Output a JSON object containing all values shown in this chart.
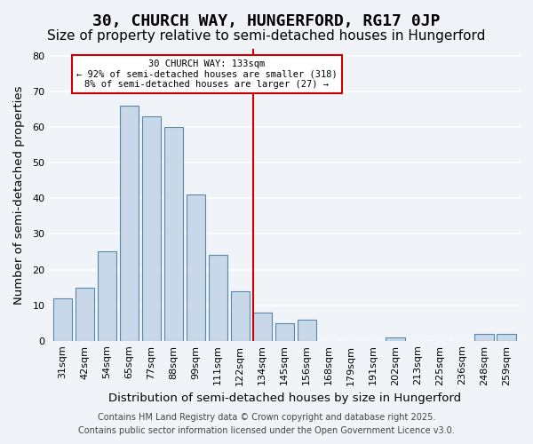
{
  "title": "30, CHURCH WAY, HUNGERFORD, RG17 0JP",
  "subtitle": "Size of property relative to semi-detached houses in Hungerford",
  "xlabel": "Distribution of semi-detached houses by size in Hungerford",
  "ylabel": "Number of semi-detached properties",
  "bar_labels": [
    "31sqm",
    "42sqm",
    "54sqm",
    "65sqm",
    "77sqm",
    "88sqm",
    "99sqm",
    "111sqm",
    "122sqm",
    "134sqm",
    "145sqm",
    "156sqm",
    "168sqm",
    "179sqm",
    "191sqm",
    "202sqm",
    "213sqm",
    "225sqm",
    "236sqm",
    "248sqm",
    "259sqm"
  ],
  "bar_values": [
    12,
    15,
    25,
    66,
    63,
    60,
    41,
    24,
    14,
    8,
    5,
    6,
    0,
    0,
    0,
    1,
    0,
    0,
    0,
    2,
    2
  ],
  "bar_color": "#c8d8e8",
  "bar_edge_color": "#5588aa",
  "vline_pos": 8.575,
  "vline_label": "30 CHURCH WAY: 133sqm",
  "annotation_line1": "← 92% of semi-detached houses are smaller (318)",
  "annotation_line2": "8% of semi-detached houses are larger (27) →",
  "annotation_box_color": "#ffffff",
  "annotation_border_color": "#cc0000",
  "vline_color": "#cc0000",
  "ylim": [
    0,
    82
  ],
  "yticks": [
    0,
    10,
    20,
    30,
    40,
    50,
    60,
    70,
    80
  ],
  "background_color": "#f0f4f8",
  "grid_color": "#ffffff",
  "footer_line1": "Contains HM Land Registry data © Crown copyright and database right 2025.",
  "footer_line2": "Contains public sector information licensed under the Open Government Licence v3.0.",
  "title_fontsize": 13,
  "subtitle_fontsize": 11,
  "axis_label_fontsize": 9.5,
  "tick_fontsize": 8,
  "footer_fontsize": 7
}
